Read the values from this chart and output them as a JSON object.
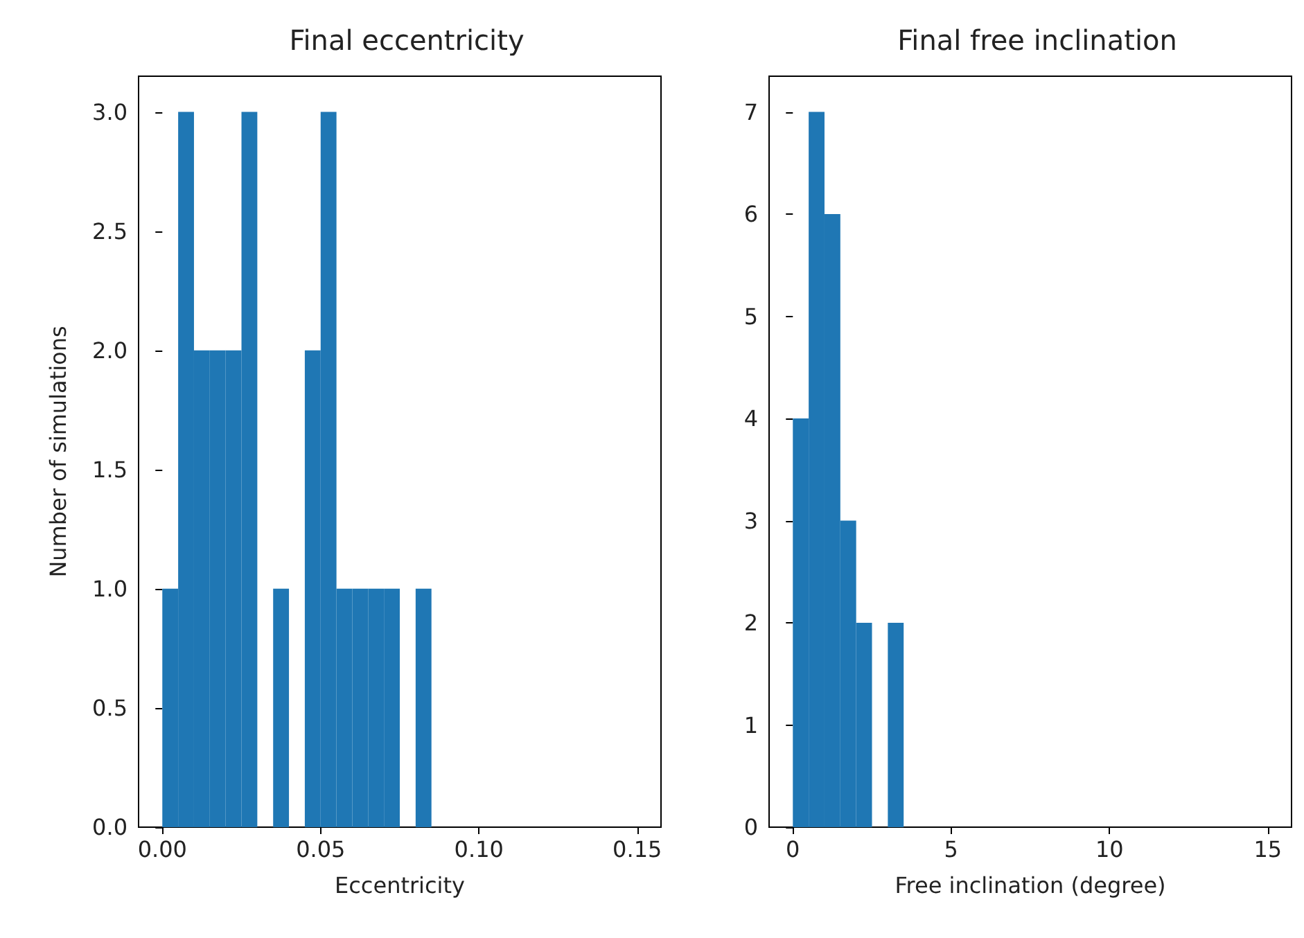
{
  "chart_data": [
    {
      "type": "histogram",
      "title": "Final eccentricity",
      "xlabel": "Eccentricity",
      "ylabel": "Number of simulations",
      "color": "#1f77b4",
      "grid": false,
      "bins": [
        0,
        0.005,
        0.01,
        0.015,
        0.02,
        0.025,
        0.03,
        0.035,
        0.04,
        0.045,
        0.05,
        0.055,
        0.06,
        0.065,
        0.07,
        0.075,
        0.08,
        0.085
      ],
      "values": [
        1,
        3,
        2,
        2,
        2,
        3,
        0,
        1,
        0,
        2,
        3,
        1,
        1,
        1,
        1,
        0,
        1
      ],
      "xlim": [
        -0.0075,
        0.1575
      ],
      "xticks": [
        {
          "value": 0,
          "label": "0.00"
        },
        {
          "value": 0.05,
          "label": "0.05"
        },
        {
          "value": 0.1,
          "label": "0.10"
        },
        {
          "value": 0.15,
          "label": "0.15"
        }
      ],
      "ylim": [
        0,
        3.15
      ],
      "yticks": [
        {
          "value": 0,
          "label": "0.0"
        },
        {
          "value": 0.5,
          "label": "0.5"
        },
        {
          "value": 1,
          "label": "1.0"
        },
        {
          "value": 1.5,
          "label": "1.5"
        },
        {
          "value": 2,
          "label": "2.0"
        },
        {
          "value": 2.5,
          "label": "2.5"
        },
        {
          "value": 3,
          "label": "3.0"
        }
      ]
    },
    {
      "type": "histogram",
      "title": "Final free inclination",
      "xlabel": "Free inclination (degree)",
      "color": "#1f77b4",
      "grid": false,
      "bins": [
        0,
        0.5,
        1,
        1.5,
        2,
        2.5,
        3,
        3.5
      ],
      "values": [
        4,
        7,
        6,
        3,
        2,
        0,
        2
      ],
      "xlim": [
        -0.75,
        15.75
      ],
      "xticks": [
        0,
        5,
        10,
        15
      ],
      "ylim": [
        0,
        7.35
      ],
      "yticks": [
        0,
        1,
        2,
        3,
        4,
        5,
        6,
        7
      ]
    }
  ]
}
